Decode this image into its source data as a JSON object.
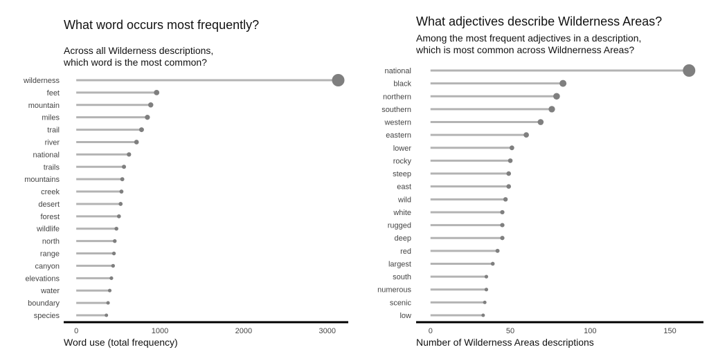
{
  "chart_data": [
    {
      "type": "lollipop",
      "title": "What word occurs most frequently?",
      "subtitle_lines": [
        "Across all Wilderness descriptions,",
        "which word is the most common?"
      ],
      "xlabel": "Word use (total frequency)",
      "ylabel": "",
      "xlim": [
        -150,
        3250
      ],
      "xticks": [
        0,
        1000,
        2000,
        3000
      ],
      "xtick_labels": [
        "0",
        "1000",
        "2000",
        "3000"
      ],
      "grid": false,
      "color": "#7f7f7f",
      "stem_color": "#b3b3b3",
      "categories": [
        "wilderness",
        "feet",
        "mountain",
        "miles",
        "trail",
        "river",
        "national",
        "trails",
        "mountains",
        "creek",
        "desert",
        "forest",
        "wildlife",
        "north",
        "range",
        "canyon",
        "elevations",
        "water",
        "boundary",
        "species"
      ],
      "values": [
        3130,
        960,
        890,
        850,
        780,
        720,
        630,
        570,
        550,
        540,
        530,
        510,
        480,
        460,
        450,
        440,
        420,
        400,
        380,
        360
      ]
    },
    {
      "type": "lollipop",
      "title": "What adjectives describe Wilderness Areas?",
      "subtitle_lines": [
        "Among the most frequent adjectives in a description,",
        "which is most common across Wildnerness Areas?"
      ],
      "xlabel": "Number of Wilderness Areas descriptions",
      "ylabel": "",
      "xlim": [
        -9,
        171
      ],
      "xticks": [
        0,
        50,
        100,
        150
      ],
      "xtick_labels": [
        "0",
        "50",
        "100",
        "150"
      ],
      "grid": false,
      "color": "#7f7f7f",
      "stem_color": "#b3b3b3",
      "categories": [
        "national",
        "black",
        "northern",
        "southern",
        "western",
        "eastern",
        "lower",
        "rocky",
        "steep",
        "east",
        "wild",
        "white",
        "rugged",
        "deep",
        "red",
        "largest",
        "south",
        "numerous",
        "scenic",
        "low"
      ],
      "values": [
        162,
        83,
        79,
        76,
        69,
        60,
        51,
        50,
        49,
        49,
        47,
        45,
        45,
        45,
        42,
        39,
        35,
        35,
        34,
        33
      ]
    }
  ]
}
